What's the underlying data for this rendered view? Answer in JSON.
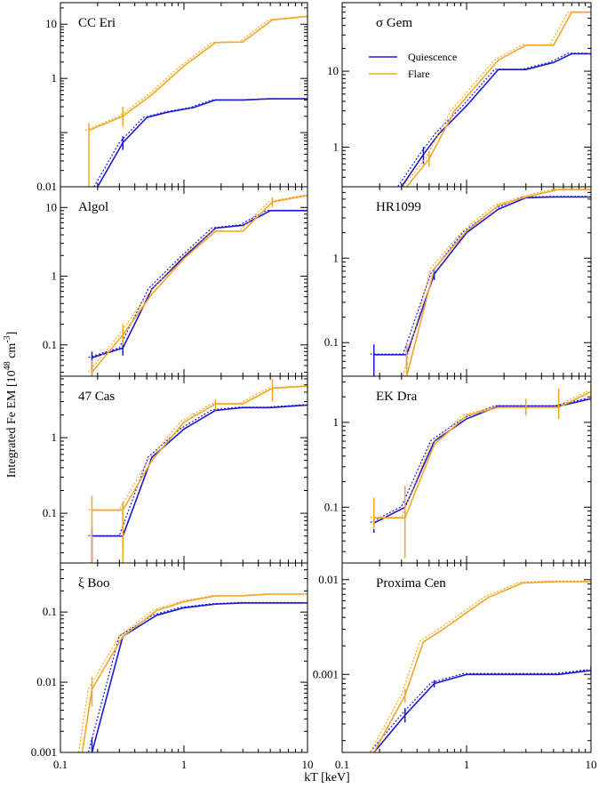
{
  "figure": {
    "xlabel": "kT [keV]",
    "ylabel_main": "Integrated Fe EM [10",
    "ylabel_exp1": "48",
    "ylabel_mid": " cm",
    "ylabel_exp2": "-3",
    "ylabel_end": "]",
    "legend": {
      "quiescence": "Quiescence",
      "flare": "Flare"
    },
    "colors": {
      "quiescence": "#1a1ad6",
      "flare": "#f5a623"
    }
  },
  "chart_data": [
    {
      "type": "line",
      "title": "CC Eri",
      "xscale": "log",
      "yscale": "log",
      "xlim": [
        0.1,
        10
      ],
      "ylim": [
        0.01,
        25
      ],
      "yticks": [
        {
          "v": 0.01,
          "label": "0.01"
        },
        {
          "v": 1,
          "label": "1"
        },
        {
          "v": 10,
          "label": "10"
        }
      ],
      "xticks": [],
      "legend": false,
      "series": [
        {
          "key": "quiescence",
          "x": [
            0.2,
            0.32,
            0.5,
            0.75,
            1.2,
            1.8,
            3.0,
            5.0,
            10.0
          ],
          "y": [
            0.01,
            0.065,
            0.19,
            0.24,
            0.29,
            0.4,
            0.4,
            0.42,
            0.42
          ],
          "err": [
            [
              0.32,
              0.048,
              0.085
            ]
          ]
        },
        {
          "key": "flare",
          "x": [
            0.17,
            0.32,
            0.55,
            1.0,
            1.8,
            3.0,
            5.2,
            10.0
          ],
          "y": [
            0.11,
            0.2,
            0.5,
            1.7,
            4.6,
            4.7,
            12.0,
            14.0
          ],
          "err": [
            [
              0.17,
              0.01,
              0.15
            ],
            [
              0.32,
              0.13,
              0.3
            ]
          ]
        }
      ]
    },
    {
      "type": "line",
      "title": "σ Gem",
      "xscale": "log",
      "yscale": "log",
      "xlim": [
        0.1,
        10
      ],
      "ylim": [
        0.3,
        80
      ],
      "yticks": [
        {
          "v": 1,
          "label": "1"
        },
        {
          "v": 10,
          "label": "10"
        }
      ],
      "xticks": [],
      "legend": true,
      "series": [
        {
          "key": "quiescence",
          "x": [
            0.3,
            0.45,
            0.6,
            1.0,
            1.8,
            3.0,
            5.0,
            7.0,
            10.0
          ],
          "y": [
            0.3,
            0.8,
            1.5,
            3.5,
            10.5,
            10.5,
            13.0,
            17.0,
            17.0
          ],
          "err": [
            [
              0.45,
              0.6,
              1.0
            ]
          ]
        },
        {
          "key": "flare",
          "x": [
            0.33,
            0.5,
            0.8,
            1.2,
            1.8,
            3.0,
            5.0,
            7.0,
            10.0
          ],
          "y": [
            0.3,
            0.7,
            3.0,
            6.5,
            14.0,
            22.0,
            22.0,
            60.0,
            60.0
          ],
          "err": [
            [
              0.5,
              0.55,
              0.9
            ]
          ]
        }
      ]
    },
    {
      "type": "line",
      "title": "Algol",
      "xscale": "log",
      "yscale": "log",
      "xlim": [
        0.1,
        10
      ],
      "ylim": [
        0.035,
        20
      ],
      "yticks": [
        {
          "v": 0.1,
          "label": "0.1"
        },
        {
          "v": 1,
          "label": "1"
        },
        {
          "v": 10,
          "label": "10"
        }
      ],
      "xticks": [],
      "legend": false,
      "series": [
        {
          "key": "quiescence",
          "x": [
            0.18,
            0.32,
            0.55,
            1.0,
            1.8,
            3.0,
            5.0,
            10.0
          ],
          "y": [
            0.065,
            0.09,
            0.65,
            1.9,
            5.0,
            5.5,
            9.0,
            9.0
          ],
          "err": [
            [
              0.18,
              0.035,
              0.08
            ],
            [
              0.32,
              0.07,
              0.13
            ]
          ]
        },
        {
          "key": "flare",
          "x": [
            0.18,
            0.32,
            0.55,
            1.0,
            1.8,
            3.0,
            5.2,
            10.0
          ],
          "y": [
            0.04,
            0.14,
            0.55,
            1.8,
            4.5,
            4.5,
            12.0,
            15.0
          ],
          "err": [
            [
              0.18,
              0.035,
              0.06
            ],
            [
              0.32,
              0.1,
              0.2
            ],
            [
              5.2,
              10.0,
              14.0
            ]
          ]
        }
      ]
    },
    {
      "type": "line",
      "title": "HR1099",
      "xscale": "log",
      "yscale": "log",
      "xlim": [
        0.1,
        10
      ],
      "ylim": [
        0.04,
        7
      ],
      "yticks": [
        {
          "v": 0.1,
          "label": "0.1"
        },
        {
          "v": 1,
          "label": "1"
        }
      ],
      "xticks": [],
      "legend": false,
      "series": [
        {
          "key": "quiescence",
          "x": [
            0.18,
            0.33,
            0.55,
            1.0,
            1.8,
            3.0,
            5.0,
            10.0
          ],
          "y": [
            0.072,
            0.072,
            0.65,
            2.0,
            3.8,
            5.2,
            5.3,
            5.3
          ],
          "err": [
            [
              0.18,
              0.04,
              0.095
            ],
            [
              0.33,
              0.05,
              0.1
            ],
            [
              0.55,
              0.55,
              0.75
            ]
          ]
        },
        {
          "key": "flare",
          "x": [
            0.33,
            0.55,
            1.0,
            1.8,
            3.0,
            5.5,
            10.0
          ],
          "y": [
            0.04,
            0.75,
            2.1,
            4.2,
            5.3,
            6.5,
            6.5
          ],
          "err": [
            [
              0.33,
              0.04,
              0.1
            ]
          ]
        }
      ]
    },
    {
      "type": "line",
      "title": "47 Cas",
      "xscale": "log",
      "yscale": "log",
      "xlim": [
        0.1,
        10
      ],
      "ylim": [
        0.022,
        6.5
      ],
      "yticks": [
        {
          "v": 0.1,
          "label": "0.1"
        },
        {
          "v": 1,
          "label": "1"
        }
      ],
      "xticks": [],
      "legend": false,
      "series": [
        {
          "key": "quiescence",
          "x": [
            0.18,
            0.32,
            0.55,
            1.0,
            1.8,
            3.0,
            5.0,
            10.0
          ],
          "y": [
            0.05,
            0.05,
            0.55,
            1.3,
            2.3,
            2.5,
            2.5,
            2.7
          ],
          "err": [
            [
              0.18,
              0.022,
              0.065
            ],
            [
              0.32,
              0.035,
              0.065
            ]
          ]
        },
        {
          "key": "flare",
          "x": [
            0.18,
            0.32,
            0.55,
            1.0,
            1.8,
            3.0,
            5.2,
            10.0
          ],
          "y": [
            0.11,
            0.11,
            0.5,
            1.6,
            2.8,
            2.8,
            4.5,
            4.8
          ],
          "err": [
            [
              0.18,
              0.022,
              0.17
            ],
            [
              0.32,
              0.022,
              0.14
            ],
            [
              1.8,
              2.3,
              3.2
            ],
            [
              5.2,
              3.0,
              6.0
            ],
            [
              10.0,
              3.8,
              5.8
            ]
          ]
        }
      ]
    },
    {
      "type": "line",
      "title": "EK Dra",
      "xscale": "log",
      "yscale": "log",
      "xlim": [
        0.1,
        10
      ],
      "ylim": [
        0.022,
        3.5
      ],
      "yticks": [
        {
          "v": 0.1,
          "label": "0.1"
        },
        {
          "v": 1,
          "label": "1"
        }
      ],
      "xticks": [],
      "legend": false,
      "series": [
        {
          "key": "quiescence",
          "x": [
            0.18,
            0.32,
            0.55,
            1.0,
            1.8,
            3.0,
            5.5,
            10.0
          ],
          "y": [
            0.065,
            0.1,
            0.6,
            1.1,
            1.55,
            1.55,
            1.55,
            1.9
          ],
          "err": [
            [
              0.18,
              0.05,
              0.08
            ],
            [
              0.32,
              0.075,
              0.14
            ]
          ]
        },
        {
          "key": "flare",
          "x": [
            0.18,
            0.32,
            0.55,
            1.0,
            1.8,
            3.0,
            5.5,
            10.0
          ],
          "y": [
            0.075,
            0.075,
            0.55,
            1.2,
            1.5,
            1.5,
            1.5,
            2.3
          ],
          "err": [
            [
              0.18,
              0.055,
              0.13
            ],
            [
              0.32,
              0.025,
              0.18
            ],
            [
              3.0,
              1.2,
              1.9
            ],
            [
              5.5,
              1.1,
              2.5
            ],
            [
              10.0,
              1.7,
              2.8
            ]
          ]
        }
      ]
    },
    {
      "type": "line",
      "title": "ξ Boo",
      "xscale": "log",
      "yscale": "log",
      "xlim": [
        0.1,
        10
      ],
      "ylim": [
        0.001,
        0.5
      ],
      "yticks": [
        {
          "v": 0.001,
          "label": "0.001"
        },
        {
          "v": 0.01,
          "label": "0.01"
        },
        {
          "v": 0.1,
          "label": "0.1"
        }
      ],
      "xticks": [
        {
          "v": 0.1,
          "label": "0.1"
        },
        {
          "v": 1,
          "label": "1"
        },
        {
          "v": 10,
          "label": "10"
        }
      ],
      "legend": false,
      "series": [
        {
          "key": "quiescence",
          "x": [
            0.18,
            0.32,
            0.6,
            1.0,
            1.8,
            3.0,
            5.0,
            10.0
          ],
          "y": [
            0.001,
            0.045,
            0.09,
            0.115,
            0.13,
            0.135,
            0.135,
            0.135
          ],
          "err": [
            [
              0.18,
              0.001,
              0.0016
            ]
          ]
        },
        {
          "key": "flare",
          "x": [
            0.15,
            0.18,
            0.32,
            0.6,
            1.0,
            1.8,
            3.0,
            5.0,
            10.0
          ],
          "y": [
            0.001,
            0.008,
            0.045,
            0.105,
            0.14,
            0.17,
            0.17,
            0.18,
            0.18
          ],
          "err": [
            [
              0.18,
              0.0045,
              0.012
            ]
          ]
        }
      ]
    },
    {
      "type": "line",
      "title": "Proxima Cen",
      "xscale": "log",
      "yscale": "log",
      "xlim": [
        0.1,
        10
      ],
      "ylim": [
        0.00015,
        0.015
      ],
      "yticks": [
        {
          "v": 0.001,
          "label": "0.001"
        },
        {
          "v": 0.01,
          "label": "0.01"
        }
      ],
      "xticks": [
        {
          "v": 0.1,
          "label": "0.1"
        },
        {
          "v": 1,
          "label": "1"
        },
        {
          "v": 10,
          "label": "10"
        }
      ],
      "legend": false,
      "series": [
        {
          "key": "quiescence",
          "x": [
            0.18,
            0.32,
            0.55,
            1.0,
            1.8,
            3.0,
            5.5,
            10.0
          ],
          "y": [
            0.00015,
            0.00037,
            0.0008,
            0.001,
            0.001,
            0.001,
            0.001,
            0.0011
          ],
          "err": [
            [
              0.32,
              0.00031,
              0.00044
            ],
            [
              0.55,
              0.00073,
              0.00087
            ],
            [
              10.0,
              0.001,
              0.00122
            ]
          ]
        },
        {
          "key": "flare",
          "x": [
            0.18,
            0.32,
            0.45,
            0.65,
            1.0,
            1.5,
            2.8,
            5.0,
            10.0
          ],
          "y": [
            0.00015,
            0.0006,
            0.0022,
            0.003,
            0.0045,
            0.0065,
            0.0092,
            0.0095,
            0.0095
          ],
          "err": [
            [
              0.32,
              0.0005,
              0.0007
            ]
          ]
        }
      ]
    }
  ]
}
